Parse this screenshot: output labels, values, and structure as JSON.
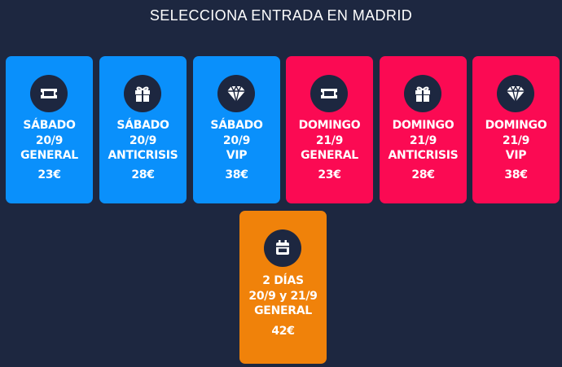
{
  "header": {
    "title": "SELECCIONA ENTRADA EN MADRID"
  },
  "colors": {
    "background": "#1d2740",
    "saturday": "#0a90fb",
    "sunday": "#fb0a53",
    "two_days": "#f0820a"
  },
  "tickets": [
    {
      "line1": "SÁBADO",
      "line2": "20/9",
      "line3": "GENERAL",
      "price": "23€",
      "icon": "ticket-icon"
    },
    {
      "line1": "SÁBADO",
      "line2": "20/9",
      "line3": "ANTICRISIS",
      "price": "28€",
      "icon": "gift-icon"
    },
    {
      "line1": "SÁBADO",
      "line2": "20/9",
      "line3": "VIP",
      "price": "38€",
      "icon": "diamond-icon"
    },
    {
      "line1": "DOMINGO",
      "line2": "21/9",
      "line3": "GENERAL",
      "price": "23€",
      "icon": "ticket-icon"
    },
    {
      "line1": "DOMINGO",
      "line2": "21/9",
      "line3": "ANTICRISIS",
      "price": "28€",
      "icon": "gift-icon"
    },
    {
      "line1": "DOMINGO",
      "line2": "21/9",
      "line3": "VIP",
      "price": "38€",
      "icon": "diamond-icon"
    },
    {
      "line1": "2 DÍAS",
      "line2": "20/9 y 21/9",
      "line3": "GENERAL",
      "price": "42€",
      "icon": "calendar-icon"
    }
  ]
}
